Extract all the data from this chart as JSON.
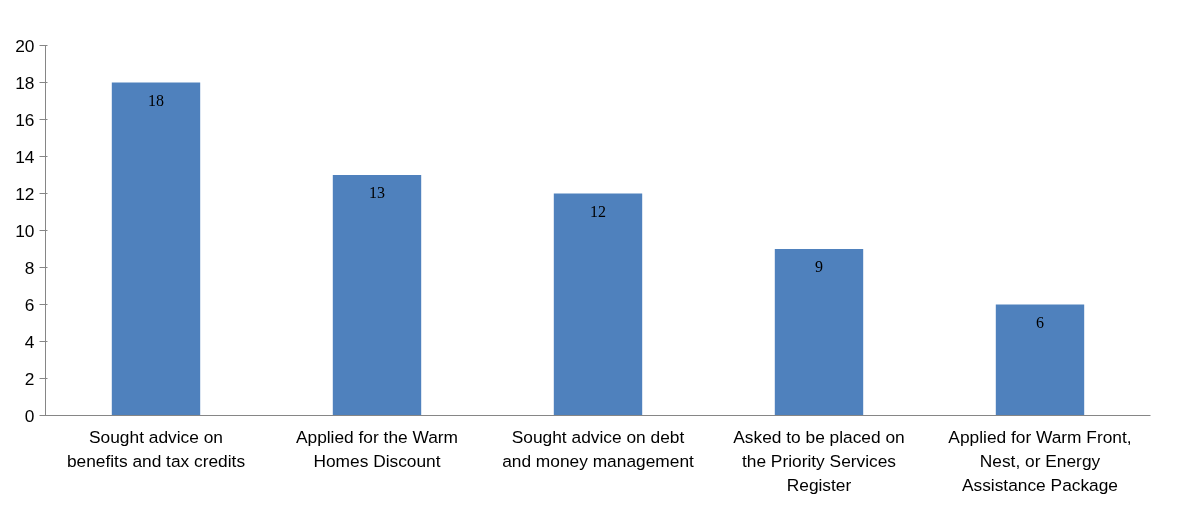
{
  "chart_data": {
    "type": "bar",
    "categories": [
      "Sought advice on benefits and tax credits",
      "Applied for the Warm Homes Discount",
      "Sought advice on debt and money management",
      "Asked to be placed on the Priority Services Register",
      "Applied for Warm Front, Nest, or Energy Assistance Package"
    ],
    "values": [
      18,
      13,
      12,
      9,
      6
    ],
    "color": "#4f81bd",
    "ylim": [
      0,
      20
    ],
    "yticks": [
      0,
      2,
      4,
      6,
      8,
      10,
      12,
      14,
      16,
      18,
      20
    ],
    "grid": false,
    "data_labels": true
  }
}
